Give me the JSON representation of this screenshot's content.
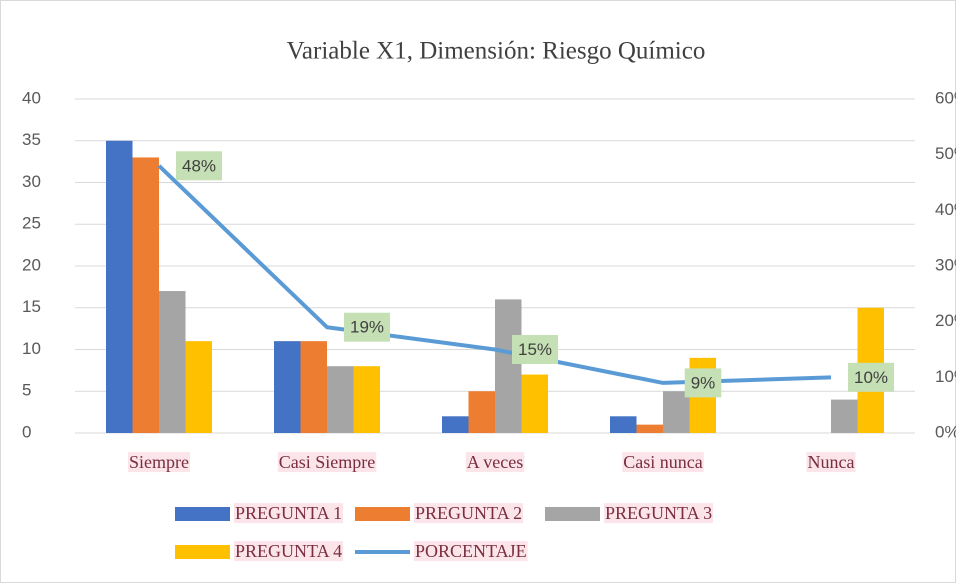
{
  "chart_data": {
    "type": "bar",
    "title": "Variable X1, Dimensión: Riesgo Químico",
    "categories": [
      "Siempre",
      "Casi Siempre",
      "A veces",
      "Casi nunca",
      "Nunca"
    ],
    "series": [
      {
        "name": "PREGUNTA 1",
        "color": "#4472c4",
        "values": [
          35,
          11,
          2,
          2,
          0
        ]
      },
      {
        "name": "PREGUNTA 2",
        "color": "#ed7d31",
        "values": [
          33,
          11,
          5,
          1,
          0
        ]
      },
      {
        "name": "PREGUNTA 3",
        "color": "#a5a5a5",
        "values": [
          17,
          8,
          16,
          5,
          4
        ]
      },
      {
        "name": "PREGUNTA 4",
        "color": "#ffc000",
        "values": [
          11,
          8,
          7,
          9,
          15
        ]
      },
      {
        "name": "PORCENTAJE",
        "color": "#5b9bd5",
        "type": "line",
        "axis": "y2",
        "values": [
          48,
          19,
          15,
          9,
          10
        ],
        "value_labels": [
          "48%",
          "19%",
          "15%",
          "9%",
          "10%"
        ]
      }
    ],
    "ylim": [
      0,
      40
    ],
    "yticks": [
      0,
      5,
      10,
      15,
      20,
      25,
      30,
      35,
      40
    ],
    "y2lim": [
      0,
      60
    ],
    "y2ticks": [
      {
        "value": 0,
        "label": "0%"
      },
      {
        "value": 10,
        "label": "10%"
      },
      {
        "value": 20,
        "label": "20%"
      },
      {
        "value": 30,
        "label": "30%"
      },
      {
        "value": 40,
        "label": "40%"
      },
      {
        "value": 50,
        "label": "50%"
      },
      {
        "value": 60,
        "label": "60%"
      }
    ],
    "grid": true,
    "legend": "bottom"
  }
}
